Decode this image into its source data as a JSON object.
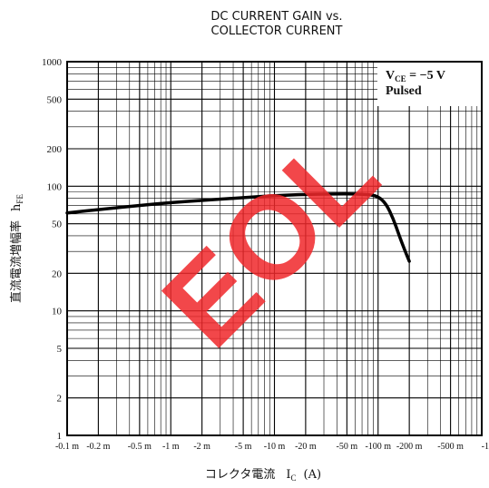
{
  "chart_data": {
    "type": "line",
    "title_lines": [
      "DC CURRENT GAIN vs.",
      "COLLECTOR CURRENT"
    ],
    "xlabel": "コレクタ電流",
    "xlabel_symbol": "I",
    "xlabel_sub": "C",
    "xlabel_unit": "(A)",
    "ylabel": "直流電流増幅率",
    "ylabel_symbol": "h",
    "ylabel_sub": "FE",
    "x_scale": "log",
    "y_scale": "log",
    "xlim": [
      0.0001,
      1
    ],
    "ylim": [
      1,
      1000
    ],
    "x_ticks": [
      {
        "value": 0.0001,
        "label": "-0.1 m"
      },
      {
        "value": 0.0002,
        "label": "-0.2 m"
      },
      {
        "value": 0.0005,
        "label": "-0.5 m"
      },
      {
        "value": 0.001,
        "label": "-1 m"
      },
      {
        "value": 0.002,
        "label": "-2 m"
      },
      {
        "value": 0.005,
        "label": "-5 m"
      },
      {
        "value": 0.01,
        "label": "-10 m"
      },
      {
        "value": 0.02,
        "label": "-20 m"
      },
      {
        "value": 0.05,
        "label": "-50 m"
      },
      {
        "value": 0.1,
        "label": "-100 m"
      },
      {
        "value": 0.2,
        "label": "-200 m"
      },
      {
        "value": 0.5,
        "label": "-500 m"
      },
      {
        "value": 1,
        "label": "-1"
      }
    ],
    "y_ticks": [
      {
        "value": 1000,
        "label": "1000"
      },
      {
        "value": 500,
        "label": "500"
      },
      {
        "value": 200,
        "label": "200"
      },
      {
        "value": 100,
        "label": "100"
      },
      {
        "value": 50,
        "label": "50"
      },
      {
        "value": 20,
        "label": "20"
      },
      {
        "value": 10,
        "label": "10"
      },
      {
        "value": 5,
        "label": "5"
      },
      {
        "value": 2,
        "label": "2"
      },
      {
        "value": 1,
        "label": "1"
      }
    ],
    "grid": true,
    "annotation": {
      "position": "top-right",
      "line1_prefix": "V",
      "line1_sub": "CE",
      "line1_rest": " = −5  V",
      "line2": "Pulsed"
    },
    "series": [
      {
        "x": [
          0.0001,
          0.0002,
          0.0005,
          0.001,
          0.002,
          0.005,
          0.01,
          0.02,
          0.05,
          0.08,
          0.1,
          0.12,
          0.14,
          0.16,
          0.18,
          0.2
        ],
        "y": [
          61,
          65,
          70,
          74,
          77,
          81,
          84,
          86,
          87,
          86,
          83,
          72,
          55,
          40,
          31,
          25
        ]
      }
    ]
  },
  "watermark": "EOL"
}
